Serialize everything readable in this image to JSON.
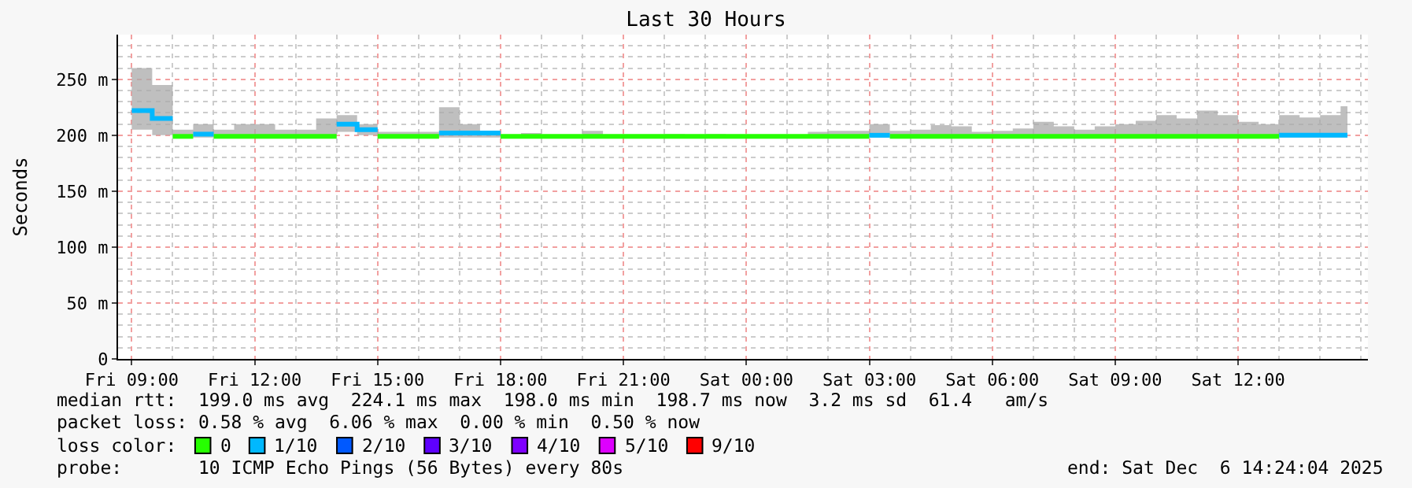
{
  "chart_data": {
    "type": "step",
    "title": "Last 30 Hours",
    "ylabel": "Seconds",
    "legend_title": "loss color:",
    "legend": "bottom",
    "grid": true,
    "marker": "none",
    "line_style": "solid",
    "xlim": [
      "--12-05T08:40",
      "--12-06T15:10"
    ],
    "xticks": [
      {
        "value": "--12-05T09:00",
        "label": "Fri 09:00"
      },
      {
        "value": "--12-05T12:00",
        "label": "Fri 12:00"
      },
      {
        "value": "--12-05T15:00",
        "label": "Fri 15:00"
      },
      {
        "value": "--12-05T18:00",
        "label": "Fri 18:00"
      },
      {
        "value": "--12-05T21:00",
        "label": "Fri 21:00"
      },
      {
        "value": "--12-06T00:00",
        "label": "Sat 00:00"
      },
      {
        "value": "--12-06T03:00",
        "label": "Sat 03:00"
      },
      {
        "value": "--12-06T06:00",
        "label": "Sat 06:00"
      },
      {
        "value": "--12-06T09:00",
        "label": "Sat 09:00"
      },
      {
        "value": "--12-06T12:00",
        "label": "Sat 12:00"
      }
    ],
    "ylim": [
      0,
      290
    ],
    "yticks": [
      0,
      {
        "value": 50,
        "label": "50 m"
      },
      {
        "value": 100,
        "label": "100 m"
      },
      {
        "value": 150,
        "label": "150 m"
      },
      {
        "value": 200,
        "label": "200 m"
      },
      {
        "value": 250,
        "label": "250 m"
      }
    ],
    "x": [
      "--12-05T09:00",
      "--12-05T09:30",
      "--12-05T10:00",
      "--12-05T10:30",
      "--12-05T11:00",
      "--12-05T11:30",
      "--12-05T12:00",
      "--12-05T12:30",
      "--12-05T13:00",
      "--12-05T13:30",
      "--12-05T14:00",
      "--12-05T14:30",
      "--12-05T15:00",
      "--12-05T15:30",
      "--12-05T16:00",
      "--12-05T16:30",
      "--12-05T17:00",
      "--12-05T17:30",
      "--12-05T18:00",
      "--12-05T18:30",
      "--12-05T19:00",
      "--12-05T19:30",
      "--12-05T20:00",
      "--12-05T20:30",
      "--12-05T21:00",
      "--12-05T21:30",
      "--12-05T22:00",
      "--12-05T22:30",
      "--12-05T23:00",
      "--12-05T23:30",
      "--12-06T00:00",
      "--12-06T00:30",
      "--12-06T01:00",
      "--12-06T01:30",
      "--12-06T02:00",
      "--12-06T02:30",
      "--12-06T03:00",
      "--12-06T03:30",
      "--12-06T04:00",
      "--12-06T04:30",
      "--12-06T05:00",
      "--12-06T05:30",
      "--12-06T06:00",
      "--12-06T06:30",
      "--12-06T07:00",
      "--12-06T07:30",
      "--12-06T08:00",
      "--12-06T08:30",
      "--12-06T09:00",
      "--12-06T09:30",
      "--12-06T10:00",
      "--12-06T10:30",
      "--12-06T11:00",
      "--12-06T11:30",
      "--12-06T12:00",
      "--12-06T12:30",
      "--12-06T13:00",
      "--12-06T13:30",
      "--12-06T14:00",
      "--12-06T14:30",
      "--12-06T14:40"
    ],
    "series": [
      {
        "name": "0",
        "color": "#26ff00",
        "values": [
          null,
          null,
          199,
          null,
          199,
          199,
          199,
          199,
          199,
          199,
          null,
          null,
          199,
          199,
          199,
          null,
          null,
          null,
          199,
          199,
          199,
          199,
          199,
          199,
          199,
          199,
          199,
          199,
          199,
          199,
          199,
          199,
          199,
          199,
          199,
          199,
          null,
          199,
          199,
          199,
          199,
          199,
          199,
          199,
          199,
          199,
          199,
          199,
          199,
          199,
          199,
          199,
          199,
          199,
          199,
          199,
          199,
          null,
          null,
          null,
          null
        ],
        "lower": [
          205,
          200,
          198,
          198,
          198,
          198,
          198,
          198,
          198,
          198,
          203,
          200,
          198,
          198,
          198,
          198,
          198,
          198,
          198,
          198,
          198,
          198,
          198,
          198,
          198,
          198,
          198,
          198,
          198,
          198,
          198,
          198,
          198,
          198,
          198,
          198,
          198,
          198,
          198,
          198,
          198,
          198,
          198,
          198,
          198,
          198,
          198,
          198,
          198,
          198,
          198,
          198,
          198,
          198,
          198,
          198,
          198,
          198,
          198,
          198,
          198
        ],
        "upper": [
          260,
          245,
          205,
          210,
          205,
          210,
          210,
          205,
          205,
          215,
          218,
          210,
          203,
          203,
          203,
          225,
          210,
          203,
          200,
          202,
          200,
          200,
          204,
          200,
          200,
          200,
          201,
          200,
          201,
          200,
          200,
          200,
          200,
          203,
          204,
          204,
          210,
          204,
          205,
          209,
          208,
          203,
          204,
          206,
          212,
          208,
          205,
          208,
          210,
          213,
          218,
          215,
          222,
          218,
          212,
          210,
          218,
          216,
          218,
          226,
          226
        ]
      },
      {
        "name": "1/10",
        "color": "#00b8ff",
        "x": [
          "--12-05T09:00",
          "--12-05T09:30",
          "--12-05T10:00",
          "--12-05T10:30",
          "--12-05T11:00",
          "--12-05T14:00",
          "--12-05T14:30",
          "--12-05T15:00",
          "--12-05T16:30",
          "--12-05T17:30",
          "--12-05T18:00",
          "--12-06T03:00",
          "--12-06T03:30",
          "--12-06T13:00",
          "--12-06T14:40"
        ],
        "values": [
          222,
          215,
          null,
          201,
          null,
          210,
          205,
          null,
          202,
          202,
          null,
          200,
          null,
          200,
          200
        ]
      },
      {
        "name": "2/10",
        "color": "#0059ff",
        "values": [
          null,
          null,
          null,
          null,
          null,
          null,
          null,
          null,
          null,
          null,
          null,
          null,
          null,
          null,
          null,
          null,
          null,
          null,
          null,
          null,
          null,
          null,
          null,
          null,
          null,
          null,
          null,
          null,
          null,
          null,
          null,
          null,
          null,
          null,
          null,
          null,
          null,
          null,
          null,
          null,
          null,
          null,
          null,
          null,
          null,
          null,
          null,
          null,
          null,
          null,
          null,
          null,
          null,
          null,
          null,
          null,
          null,
          null,
          null,
          null,
          null
        ]
      },
      {
        "name": "3/10",
        "color": "#5e00ff",
        "values": [
          null,
          null,
          null,
          null,
          null,
          null,
          null,
          null,
          null,
          null,
          null,
          null,
          null,
          null,
          null,
          null,
          null,
          null,
          null,
          null,
          null,
          null,
          null,
          null,
          null,
          null,
          null,
          null,
          null,
          null,
          null,
          null,
          null,
          null,
          null,
          null,
          null,
          null,
          null,
          null,
          null,
          null,
          null,
          null,
          null,
          null,
          null,
          null,
          null,
          null,
          null,
          null,
          null,
          null,
          null,
          null,
          null,
          null,
          null,
          null,
          null
        ]
      },
      {
        "name": "4/10",
        "color": "#7e00ff",
        "values": [
          null,
          null,
          null,
          null,
          null,
          null,
          null,
          null,
          null,
          null,
          null,
          null,
          null,
          null,
          null,
          null,
          null,
          null,
          null,
          null,
          null,
          null,
          null,
          null,
          null,
          null,
          null,
          null,
          null,
          null,
          null,
          null,
          null,
          null,
          null,
          null,
          null,
          null,
          null,
          null,
          null,
          null,
          null,
          null,
          null,
          null,
          null,
          null,
          null,
          null,
          null,
          null,
          null,
          null,
          null,
          null,
          null,
          null,
          null,
          null,
          null
        ]
      },
      {
        "name": "5/10",
        "color": "#dd00ff",
        "values": [
          null,
          null,
          null,
          null,
          null,
          null,
          null,
          null,
          null,
          null,
          null,
          null,
          null,
          null,
          null,
          null,
          null,
          null,
          null,
          null,
          null,
          null,
          null,
          null,
          null,
          null,
          null,
          null,
          null,
          null,
          null,
          null,
          null,
          null,
          null,
          null,
          null,
          null,
          null,
          null,
          null,
          null,
          null,
          null,
          null,
          null,
          null,
          null,
          null,
          null,
          null,
          null,
          null,
          null,
          null,
          null,
          null,
          null,
          null,
          null,
          null
        ]
      },
      {
        "name": "9/10",
        "color": "#ff0000",
        "values": [
          null,
          null,
          null,
          null,
          null,
          null,
          null,
          null,
          null,
          null,
          null,
          null,
          null,
          null,
          null,
          null,
          null,
          null,
          null,
          null,
          null,
          null,
          null,
          null,
          null,
          null,
          null,
          null,
          null,
          null,
          null,
          null,
          null,
          null,
          null,
          null,
          null,
          null,
          null,
          null,
          null,
          null,
          null,
          null,
          null,
          null,
          null,
          null,
          null,
          null,
          null,
          null,
          null,
          null,
          null,
          null,
          null,
          null,
          null,
          null,
          null
        ]
      }
    ],
    "annotations": [
      "median rtt:  199.0 ms avg  224.1 ms max  198.0 ms min  198.7 ms now  3.2 ms sd  61.4   am/s",
      "packet loss: 0.58 % avg  6.06 % max  0.00 % min  0.50 % now",
      "probe:       10 ICMP Echo Pings (56 Bytes) every 80s",
      "end: Sat Dec  6 14:24:04 2025"
    ]
  }
}
